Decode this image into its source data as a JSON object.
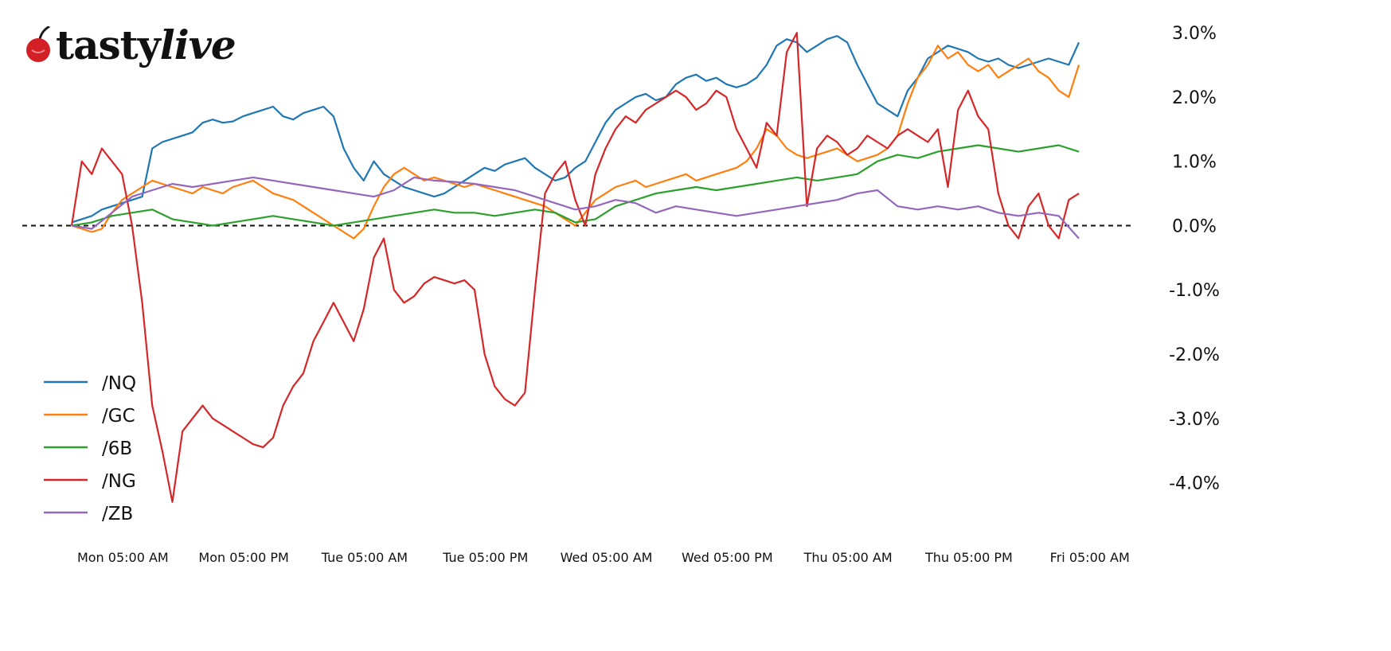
{
  "brand": {
    "name": "tastylive",
    "part1": "tasty",
    "part2": "live"
  },
  "chart_data": {
    "type": "line",
    "title": "",
    "xlabel": "",
    "ylabel": "",
    "ylim": [
      -4.6,
      3.2
    ],
    "y_ticks": [
      {
        "value": 3.0,
        "label": "3.0%"
      },
      {
        "value": 2.0,
        "label": "2.0%"
      },
      {
        "value": 1.0,
        "label": "1.0%"
      },
      {
        "value": 0.0,
        "label": "0.0%"
      },
      {
        "value": -1.0,
        "label": "-1.0%"
      },
      {
        "value": -2.0,
        "label": "-2.0%"
      },
      {
        "value": -3.0,
        "label": "-3.0%"
      },
      {
        "value": -4.0,
        "label": "-4.0%"
      }
    ],
    "x_ticks": [
      {
        "value": 0.5,
        "label": "Mon 05:00 AM"
      },
      {
        "value": 12.5,
        "label": "Mon 05:00 PM"
      },
      {
        "value": 24.5,
        "label": "Tue 05:00 AM"
      },
      {
        "value": 36.5,
        "label": "Tue 05:00 PM"
      },
      {
        "value": 48.5,
        "label": "Wed 05:00 AM"
      },
      {
        "value": 60.5,
        "label": "Wed 05:00 PM"
      },
      {
        "value": 72.5,
        "label": "Thu 05:00 AM"
      },
      {
        "value": 84.5,
        "label": "Thu 05:00 PM"
      },
      {
        "value": 96.5,
        "label": "Fri 05:00 AM"
      }
    ],
    "xlim": [
      0,
      100
    ],
    "x_unit": "hours",
    "baseline": 0.0,
    "legend_position": "bottom-left",
    "y_axis_side": "right",
    "grid": false,
    "series": [
      {
        "name": "/NQ",
        "color": "#1f77b4",
        "x": [
          0,
          1,
          2,
          3,
          4,
          5,
          6,
          7,
          8,
          9,
          10,
          11,
          12,
          13,
          14,
          15,
          16,
          17,
          18,
          19,
          20,
          21,
          22,
          23,
          24,
          25,
          26,
          27,
          28,
          29,
          30,
          31,
          32,
          33,
          34,
          35,
          36,
          37,
          38,
          39,
          40,
          41,
          42,
          43,
          44,
          45,
          46,
          47,
          48,
          49,
          50,
          51,
          52,
          53,
          54,
          55,
          56,
          57,
          58,
          59,
          60,
          61,
          62,
          63,
          64,
          65,
          66,
          67,
          68,
          69,
          70,
          71,
          72,
          73,
          74,
          75,
          76,
          77,
          78,
          79,
          80,
          81,
          82,
          83,
          84,
          85,
          86,
          87,
          88,
          89,
          90,
          91,
          92,
          93,
          94,
          95,
          96,
          97,
          98,
          99,
          100
        ],
        "y": [
          0.05,
          0.1,
          0.15,
          0.25,
          0.3,
          0.35,
          0.4,
          0.45,
          1.2,
          1.3,
          1.35,
          1.4,
          1.45,
          1.6,
          1.65,
          1.6,
          1.62,
          1.7,
          1.75,
          1.8,
          1.85,
          1.7,
          1.65,
          1.75,
          1.8,
          1.85,
          1.7,
          1.2,
          0.9,
          0.7,
          1.0,
          0.8,
          0.7,
          0.6,
          0.55,
          0.5,
          0.45,
          0.5,
          0.6,
          0.7,
          0.8,
          0.9,
          0.85,
          0.95,
          1.0,
          1.05,
          0.9,
          0.8,
          0.7,
          0.75,
          0.9,
          1.0,
          1.3,
          1.6,
          1.8,
          1.9,
          2.0,
          2.05,
          1.95,
          2.0,
          2.2,
          2.3,
          2.35,
          2.25,
          2.3,
          2.2,
          2.15,
          2.2,
          2.3,
          2.5,
          2.8,
          2.9,
          2.85,
          2.7,
          2.8,
          2.9,
          2.95,
          2.85,
          2.5,
          2.2,
          1.9,
          1.8,
          1.7,
          2.1,
          2.3,
          2.6,
          2.7,
          2.8,
          2.75,
          2.7,
          2.6,
          2.55,
          2.6,
          2.5,
          2.45,
          2.5,
          2.55,
          2.6,
          2.55,
          2.5,
          2.85
        ]
      },
      {
        "name": "/GC",
        "color": "#ff7f0e",
        "x": [
          0,
          1,
          2,
          3,
          4,
          5,
          6,
          7,
          8,
          9,
          10,
          11,
          12,
          13,
          14,
          15,
          16,
          17,
          18,
          19,
          20,
          21,
          22,
          23,
          24,
          25,
          26,
          27,
          28,
          29,
          30,
          31,
          32,
          33,
          34,
          35,
          36,
          37,
          38,
          39,
          40,
          41,
          42,
          43,
          44,
          45,
          46,
          47,
          48,
          49,
          50,
          51,
          52,
          53,
          54,
          55,
          56,
          57,
          58,
          59,
          60,
          61,
          62,
          63,
          64,
          65,
          66,
          67,
          68,
          69,
          70,
          71,
          72,
          73,
          74,
          75,
          76,
          77,
          78,
          79,
          80,
          81,
          82,
          83,
          84,
          85,
          86,
          87,
          88,
          89,
          90,
          91,
          92,
          93,
          94,
          95,
          96,
          97,
          98,
          99,
          100
        ],
        "y": [
          0.0,
          -0.05,
          -0.1,
          -0.05,
          0.2,
          0.4,
          0.5,
          0.6,
          0.7,
          0.65,
          0.6,
          0.55,
          0.5,
          0.6,
          0.55,
          0.5,
          0.6,
          0.65,
          0.7,
          0.6,
          0.5,
          0.45,
          0.4,
          0.3,
          0.2,
          0.1,
          0.0,
          -0.1,
          -0.2,
          -0.05,
          0.3,
          0.6,
          0.8,
          0.9,
          0.8,
          0.7,
          0.75,
          0.7,
          0.65,
          0.6,
          0.65,
          0.6,
          0.55,
          0.5,
          0.45,
          0.4,
          0.35,
          0.3,
          0.2,
          0.1,
          0.0,
          0.2,
          0.4,
          0.5,
          0.6,
          0.65,
          0.7,
          0.6,
          0.65,
          0.7,
          0.75,
          0.8,
          0.7,
          0.75,
          0.8,
          0.85,
          0.9,
          1.0,
          1.2,
          1.5,
          1.4,
          1.2,
          1.1,
          1.05,
          1.1,
          1.15,
          1.2,
          1.1,
          1.0,
          1.05,
          1.1,
          1.2,
          1.4,
          1.9,
          2.3,
          2.5,
          2.8,
          2.6,
          2.7,
          2.5,
          2.4,
          2.5,
          2.3,
          2.4,
          2.5,
          2.6,
          2.4,
          2.3,
          2.1,
          2.0,
          2.5
        ]
      },
      {
        "name": "/6B",
        "color": "#2ca02c",
        "x": [
          0,
          2,
          4,
          6,
          8,
          10,
          12,
          14,
          16,
          18,
          20,
          22,
          24,
          26,
          28,
          30,
          32,
          34,
          36,
          38,
          40,
          42,
          44,
          46,
          48,
          50,
          52,
          54,
          56,
          58,
          60,
          62,
          64,
          66,
          68,
          70,
          72,
          74,
          76,
          78,
          80,
          82,
          84,
          86,
          88,
          90,
          92,
          94,
          96,
          98,
          100
        ],
        "y": [
          0.0,
          0.05,
          0.15,
          0.2,
          0.25,
          0.1,
          0.05,
          0.0,
          0.05,
          0.1,
          0.15,
          0.1,
          0.05,
          0.0,
          0.05,
          0.1,
          0.15,
          0.2,
          0.25,
          0.2,
          0.2,
          0.15,
          0.2,
          0.25,
          0.2,
          0.05,
          0.1,
          0.3,
          0.4,
          0.5,
          0.55,
          0.6,
          0.55,
          0.6,
          0.65,
          0.7,
          0.75,
          0.7,
          0.75,
          0.8,
          1.0,
          1.1,
          1.05,
          1.15,
          1.2,
          1.25,
          1.2,
          1.15,
          1.2,
          1.25,
          1.15
        ]
      },
      {
        "name": "/NG",
        "color": "#d62728",
        "x": [
          0,
          1,
          2,
          3,
          4,
          5,
          6,
          7,
          8,
          9,
          10,
          11,
          12,
          13,
          14,
          15,
          16,
          17,
          18,
          19,
          20,
          21,
          22,
          23,
          24,
          25,
          26,
          27,
          28,
          29,
          30,
          31,
          32,
          33,
          34,
          35,
          36,
          37,
          38,
          39,
          40,
          41,
          42,
          43,
          44,
          45,
          46,
          47,
          48,
          49,
          50,
          51,
          52,
          53,
          54,
          55,
          56,
          57,
          58,
          59,
          60,
          61,
          62,
          63,
          64,
          65,
          66,
          67,
          68,
          69,
          70,
          71,
          72,
          73,
          74,
          75,
          76,
          77,
          78,
          79,
          80,
          81,
          82,
          83,
          84,
          85,
          86,
          87,
          88,
          89,
          90,
          91,
          92,
          93,
          94,
          95,
          96,
          97,
          98,
          99,
          100
        ],
        "y": [
          0.0,
          1.0,
          0.8,
          1.2,
          1.0,
          0.8,
          0.0,
          -1.2,
          -2.8,
          -3.5,
          -4.3,
          -3.2,
          -3.0,
          -2.8,
          -3.0,
          -3.1,
          -3.2,
          -3.3,
          -3.4,
          -3.45,
          -3.3,
          -2.8,
          -2.5,
          -2.3,
          -1.8,
          -1.5,
          -1.2,
          -1.5,
          -1.8,
          -1.3,
          -0.5,
          -0.2,
          -1.0,
          -1.2,
          -1.1,
          -0.9,
          -0.8,
          -0.85,
          -0.9,
          -0.85,
          -1.0,
          -2.0,
          -2.5,
          -2.7,
          -2.8,
          -2.6,
          -1.0,
          0.5,
          0.8,
          1.0,
          0.4,
          0.0,
          0.8,
          1.2,
          1.5,
          1.7,
          1.6,
          1.8,
          1.9,
          2.0,
          2.1,
          2.0,
          1.8,
          1.9,
          2.1,
          2.0,
          1.5,
          1.2,
          0.9,
          1.6,
          1.4,
          2.7,
          3.0,
          0.3,
          1.2,
          1.4,
          1.3,
          1.1,
          1.2,
          1.4,
          1.3,
          1.2,
          1.4,
          1.5,
          1.4,
          1.3,
          1.5,
          0.6,
          1.8,
          2.1,
          1.7,
          1.5,
          0.5,
          0.0,
          -0.2,
          0.3,
          0.5,
          0.0,
          -0.2,
          0.4,
          0.5
        ]
      },
      {
        "name": "/ZB",
        "color": "#9467bd",
        "x": [
          0,
          2,
          4,
          6,
          8,
          10,
          12,
          14,
          16,
          18,
          20,
          22,
          24,
          26,
          28,
          30,
          32,
          34,
          36,
          38,
          40,
          42,
          44,
          46,
          48,
          50,
          52,
          54,
          56,
          58,
          60,
          62,
          64,
          66,
          68,
          70,
          72,
          74,
          76,
          78,
          80,
          82,
          84,
          86,
          88,
          90,
          92,
          94,
          96,
          98,
          100
        ],
        "y": [
          0.0,
          -0.05,
          0.2,
          0.45,
          0.55,
          0.65,
          0.6,
          0.65,
          0.7,
          0.75,
          0.7,
          0.65,
          0.6,
          0.55,
          0.5,
          0.45,
          0.55,
          0.75,
          0.7,
          0.68,
          0.65,
          0.6,
          0.55,
          0.45,
          0.35,
          0.25,
          0.3,
          0.4,
          0.35,
          0.2,
          0.3,
          0.25,
          0.2,
          0.15,
          0.2,
          0.25,
          0.3,
          0.35,
          0.4,
          0.5,
          0.55,
          0.3,
          0.25,
          0.3,
          0.25,
          0.3,
          0.2,
          0.15,
          0.2,
          0.15,
          -0.2
        ]
      }
    ]
  }
}
